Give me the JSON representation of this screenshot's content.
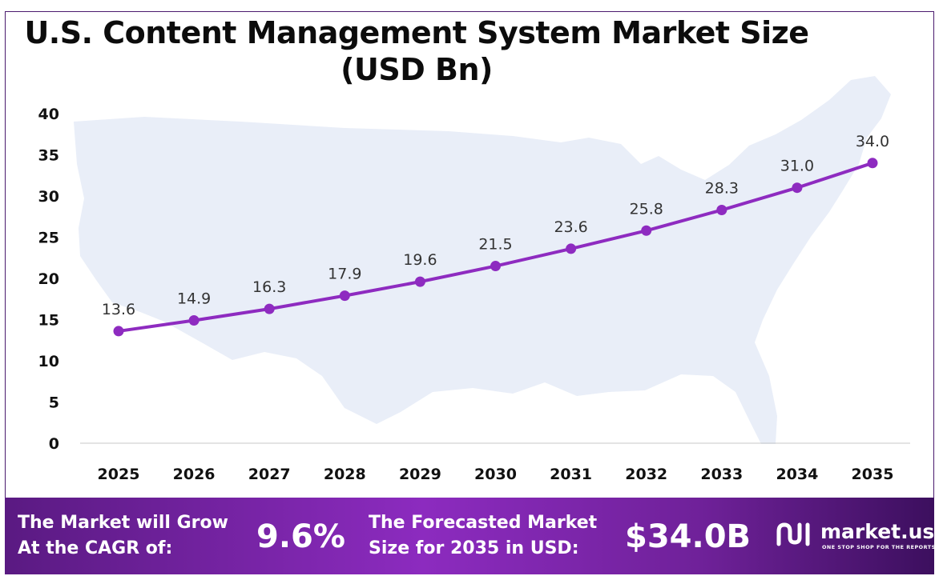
{
  "title_line1": "U.S. Content Management System Market Size",
  "title_line2": "(USD Bn)",
  "colors": {
    "line": "#8e2bc0",
    "marker": "#8e2bc0",
    "map": "#e9eef8",
    "axis": "#000000"
  },
  "chart_data": {
    "type": "line",
    "title": "U.S. Content Management System Market Size (USD Bn)",
    "xlabel": "",
    "ylabel": "",
    "categories": [
      "2025",
      "2026",
      "2027",
      "2028",
      "2029",
      "2030",
      "2031",
      "2032",
      "2033",
      "2034",
      "2035"
    ],
    "values": [
      13.6,
      14.9,
      16.3,
      17.9,
      19.6,
      21.5,
      23.6,
      25.8,
      28.3,
      31.0,
      34.0
    ],
    "data_labels": [
      "13.6",
      "14.9",
      "16.3",
      "17.9",
      "19.6",
      "21.5",
      "23.6",
      "25.8",
      "28.3",
      "31.0",
      "34.0"
    ],
    "yticks": [
      "0",
      "5",
      "10",
      "15",
      "20",
      "25",
      "30",
      "35",
      "40"
    ],
    "ylim": [
      0,
      40
    ],
    "grid": false,
    "legend": "none"
  },
  "footer": {
    "cagr_label_line1": "The Market will Grow",
    "cagr_label_line2": "At the CAGR of:",
    "cagr_value": "9.6%",
    "forecast_label_line1": "The Forecasted Market",
    "forecast_label_line2": "Size for 2035 in USD:",
    "forecast_value": "$34.0B",
    "brand_name": "market.us",
    "brand_tagline": "ONE STOP SHOP FOR THE REPORTS",
    "brand_icon": "market-us-logo-icon"
  }
}
